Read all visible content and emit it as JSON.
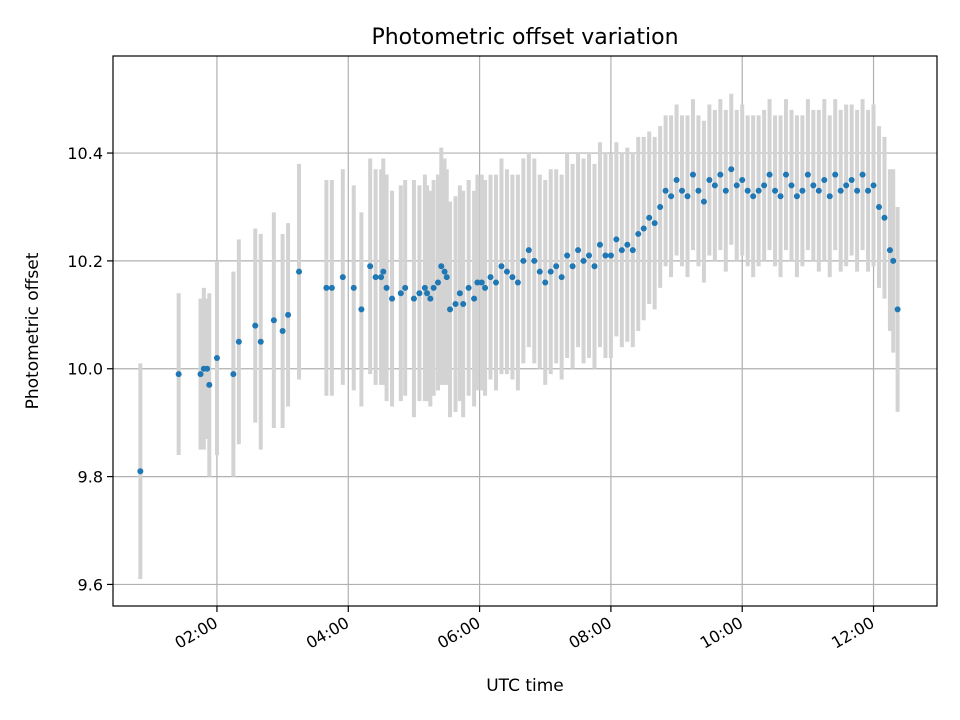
{
  "chart_data": {
    "type": "scatter",
    "title": "Photometric offset variation",
    "xlabel": "UTC time",
    "ylabel": "Photometric offset",
    "xlim": [
      "00:25",
      "12:58"
    ],
    "ylim": [
      9.56,
      10.58
    ],
    "x_ticks": [
      "02:00",
      "04:00",
      "06:00",
      "08:00",
      "10:00",
      "12:00"
    ],
    "y_ticks": [
      "9.6",
      "9.8",
      "10.0",
      "10.2",
      "10.4"
    ],
    "grid": true,
    "colors": {
      "points": "#1f77b4",
      "error_bars": "#d3d3d3"
    },
    "series": [
      {
        "x": [
          "00:50",
          "01:25",
          "01:45",
          "01:48",
          "01:51",
          "01:53",
          "02:00",
          "02:15",
          "02:20",
          "02:35",
          "02:40",
          "02:52",
          "03:00",
          "03:05",
          "03:15",
          "03:40",
          "03:45",
          "03:55",
          "04:05",
          "04:12",
          "04:20",
          "04:25",
          "04:30",
          "04:32",
          "04:35",
          "04:40",
          "04:48",
          "04:52",
          "05:00",
          "05:05",
          "05:10",
          "05:12",
          "05:15",
          "05:18",
          "05:22",
          "05:25",
          "05:28",
          "05:30",
          "05:33",
          "05:38",
          "05:42",
          "05:45",
          "05:50",
          "05:55",
          "05:58",
          "06:02",
          "06:05",
          "06:10",
          "06:15",
          "06:20",
          "06:25",
          "06:30",
          "06:35",
          "06:40",
          "06:45",
          "06:50",
          "06:55",
          "07:00",
          "07:05",
          "07:10",
          "07:15",
          "07:20",
          "07:25",
          "07:30",
          "07:35",
          "07:40",
          "07:45",
          "07:50",
          "07:55",
          "08:00",
          "08:05",
          "08:10",
          "08:15",
          "08:20",
          "08:25",
          "08:30",
          "08:35",
          "08:40",
          "08:45",
          "08:50",
          "08:55",
          "09:00",
          "09:05",
          "09:10",
          "09:15",
          "09:20",
          "09:25",
          "09:30",
          "09:35",
          "09:40",
          "09:45",
          "09:50",
          "09:55",
          "10:00",
          "10:05",
          "10:10",
          "10:15",
          "10:20",
          "10:25",
          "10:30",
          "10:35",
          "10:40",
          "10:45",
          "10:50",
          "10:55",
          "11:00",
          "11:05",
          "11:10",
          "11:15",
          "11:20",
          "11:25",
          "11:30",
          "11:35",
          "11:40",
          "11:45",
          "11:50",
          "11:55",
          "12:00",
          "12:05",
          "12:10",
          "12:15",
          "12:18",
          "12:22"
        ],
        "y": [
          9.81,
          9.99,
          9.99,
          10.0,
          10.0,
          9.97,
          10.02,
          9.99,
          10.05,
          10.08,
          10.05,
          10.09,
          10.07,
          10.1,
          10.18,
          10.15,
          10.15,
          10.17,
          10.15,
          10.11,
          10.19,
          10.17,
          10.17,
          10.18,
          10.15,
          10.13,
          10.14,
          10.15,
          10.13,
          10.14,
          10.15,
          10.14,
          10.13,
          10.15,
          10.16,
          10.19,
          10.18,
          10.17,
          10.11,
          10.12,
          10.14,
          10.12,
          10.15,
          10.13,
          10.16,
          10.16,
          10.15,
          10.17,
          10.16,
          10.19,
          10.18,
          10.17,
          10.16,
          10.2,
          10.22,
          10.2,
          10.18,
          10.16,
          10.18,
          10.19,
          10.17,
          10.21,
          10.19,
          10.22,
          10.2,
          10.21,
          10.19,
          10.23,
          10.21,
          10.21,
          10.24,
          10.22,
          10.23,
          10.22,
          10.25,
          10.26,
          10.28,
          10.27,
          10.3,
          10.33,
          10.32,
          10.35,
          10.33,
          10.32,
          10.36,
          10.33,
          10.31,
          10.35,
          10.34,
          10.36,
          10.33,
          10.37,
          10.34,
          10.35,
          10.33,
          10.32,
          10.33,
          10.34,
          10.36,
          10.33,
          10.32,
          10.36,
          10.34,
          10.32,
          10.33,
          10.36,
          10.34,
          10.33,
          10.35,
          10.32,
          10.36,
          10.33,
          10.34,
          10.35,
          10.33,
          10.36,
          10.33,
          10.34,
          10.3,
          10.28,
          10.22,
          10.2,
          10.11
        ],
        "err": [
          0.2,
          0.15,
          0.14,
          0.15,
          0.13,
          0.17,
          0.18,
          0.19,
          0.19,
          0.18,
          0.2,
          0.2,
          0.18,
          0.17,
          0.2,
          0.2,
          0.2,
          0.2,
          0.19,
          0.18,
          0.2,
          0.2,
          0.2,
          0.21,
          0.21,
          0.2,
          0.2,
          0.2,
          0.22,
          0.2,
          0.21,
          0.2,
          0.2,
          0.2,
          0.2,
          0.22,
          0.21,
          0.2,
          0.2,
          0.2,
          0.2,
          0.21,
          0.2,
          0.2,
          0.2,
          0.2,
          0.2,
          0.19,
          0.2,
          0.2,
          0.19,
          0.19,
          0.2,
          0.19,
          0.18,
          0.19,
          0.18,
          0.19,
          0.19,
          0.18,
          0.19,
          0.19,
          0.19,
          0.18,
          0.19,
          0.19,
          0.19,
          0.19,
          0.19,
          0.19,
          0.18,
          0.18,
          0.18,
          0.18,
          0.18,
          0.17,
          0.16,
          0.16,
          0.15,
          0.14,
          0.15,
          0.14,
          0.14,
          0.15,
          0.14,
          0.14,
          0.15,
          0.14,
          0.14,
          0.14,
          0.15,
          0.14,
          0.14,
          0.14,
          0.14,
          0.15,
          0.14,
          0.14,
          0.14,
          0.14,
          0.15,
          0.14,
          0.14,
          0.15,
          0.14,
          0.14,
          0.14,
          0.15,
          0.15,
          0.15,
          0.14,
          0.15,
          0.15,
          0.14,
          0.15,
          0.14,
          0.15,
          0.15,
          0.15,
          0.15,
          0.15,
          0.17,
          0.19
        ]
      }
    ]
  }
}
